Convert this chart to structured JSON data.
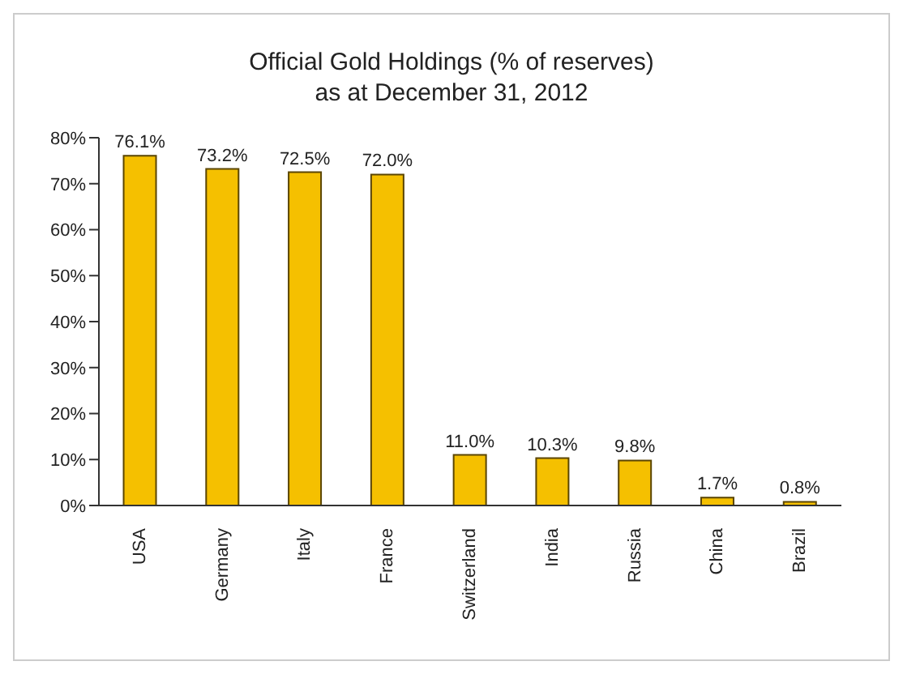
{
  "chart_data": {
    "type": "bar",
    "title": "Official Gold Holdings (% of reserves)",
    "subtitle": "as at December 31, 2012",
    "categories": [
      "USA",
      "Germany",
      "Italy",
      "France",
      "Switzerland",
      "India",
      "Russia",
      "China",
      "Brazil"
    ],
    "values": [
      76.1,
      73.2,
      72.5,
      72.0,
      11.0,
      10.3,
      9.8,
      1.7,
      0.8
    ],
    "value_labels": [
      "76.1%",
      "73.2%",
      "72.5%",
      "72.0%",
      "11.0%",
      "10.3%",
      "9.8%",
      "1.7%",
      "0.8%"
    ],
    "color": "#f5c000",
    "ylim": [
      0,
      80
    ],
    "yticks": [
      {
        "value": 0,
        "label": "0%"
      },
      {
        "value": 10,
        "label": "10%"
      },
      {
        "value": 20,
        "label": "20%"
      },
      {
        "value": 30,
        "label": "30%"
      },
      {
        "value": 40,
        "label": "40%"
      },
      {
        "value": 50,
        "label": "50%"
      },
      {
        "value": 60,
        "label": "60%"
      },
      {
        "value": 70,
        "label": "70%"
      },
      {
        "value": 80,
        "label": "80%"
      }
    ],
    "grid": false,
    "legend": false
  }
}
